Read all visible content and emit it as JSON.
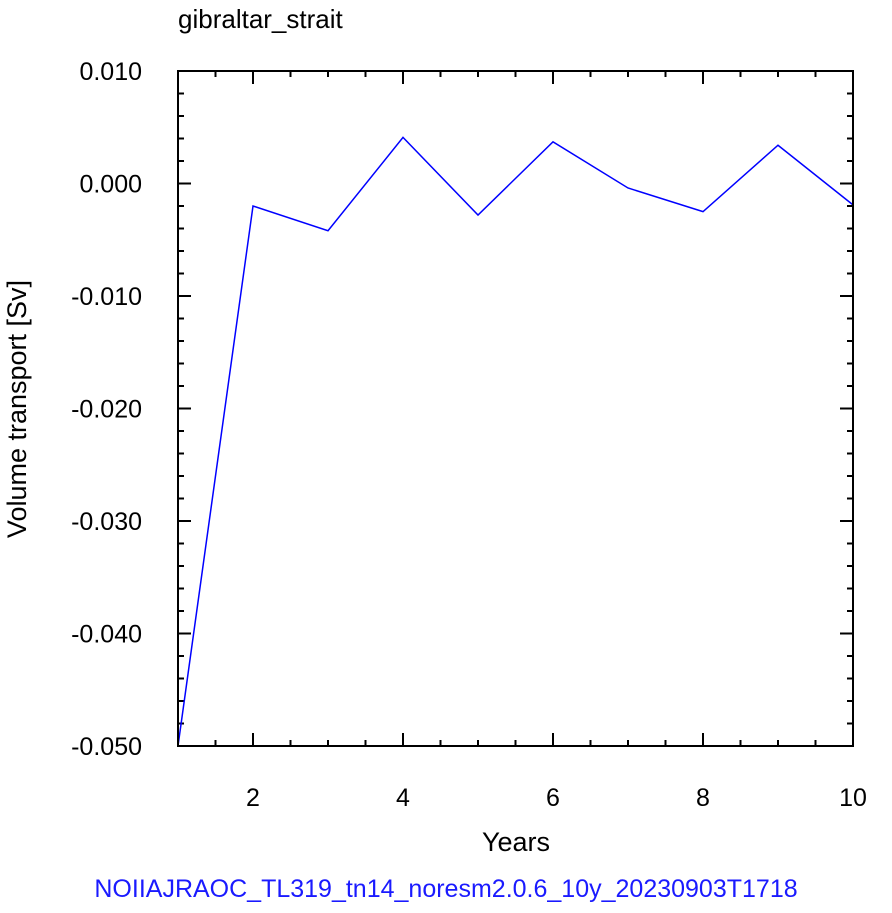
{
  "chart_data": {
    "type": "line",
    "title": "gibraltar_strait",
    "xlabel": "Years",
    "ylabel": "Volume transport [Sv]",
    "xlim": [
      1,
      10
    ],
    "ylim": [
      -0.05,
      0.01
    ],
    "x_ticks": [
      2,
      4,
      6,
      8,
      10
    ],
    "x_tick_labels": [
      "2",
      "4",
      "6",
      "8",
      "10"
    ],
    "y_ticks": [
      0.01,
      0.0,
      -0.01,
      -0.02,
      -0.03,
      -0.04,
      -0.05
    ],
    "y_tick_labels": [
      "0.010",
      "0.000",
      "-0.010",
      "-0.020",
      "-0.030",
      "-0.040",
      "-0.050"
    ],
    "grid": false,
    "series": [
      {
        "color": "#0000ff",
        "x": [
          1,
          2,
          3,
          4,
          5,
          6,
          7,
          8,
          9,
          10
        ],
        "y": [
          -0.05,
          -0.002,
          -0.0042,
          0.0041,
          -0.0028,
          0.0037,
          -0.0004,
          -0.0025,
          0.0034,
          -0.0019
        ]
      }
    ]
  },
  "footer": "NOIIAJRAOC_TL319_tn14_noresm2.0.6_10y_20230903T1718"
}
